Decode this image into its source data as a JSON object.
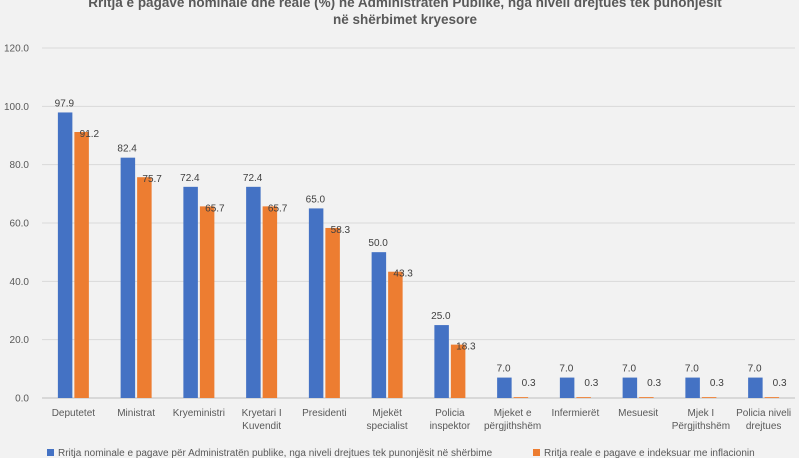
{
  "chart_data": {
    "type": "bar",
    "title": "Rritja e pagave nominale dhe reale (%) në Administratën Publike, nga niveli drejtues tek punonjësit në shërbimet kryesore",
    "title_lines": [
      "Rritja e pagave nominale dhe reale (%) në Administratën Publike, nga niveli drejtues tek punonjësit",
      "në shërbimet kryesore"
    ],
    "categories": [
      "Deputetet",
      "Ministrat",
      "Kryeministri",
      "Kryetari I Kuvendit",
      "Presidenti",
      "Mjekët specialist",
      "Policia inspektor",
      "Mjeket e përgjithshëm",
      "Infermierët",
      "Mesuesit",
      "Mjek I Përgjithshëm",
      "Policia niveli drejtues"
    ],
    "category_lines": [
      [
        "Deputetet"
      ],
      [
        "Ministrat"
      ],
      [
        "Kryeministri"
      ],
      [
        "Kryetari I",
        "Kuvendit"
      ],
      [
        "Presidenti"
      ],
      [
        "Mjekët",
        "specialist"
      ],
      [
        "Policia",
        "inspektor"
      ],
      [
        "Mjeket e",
        "përgjithshëm"
      ],
      [
        "Infermierët"
      ],
      [
        "Mesuesit"
      ],
      [
        "Mjek I",
        "Përgjithshëm"
      ],
      [
        "Policia niveli",
        "drejtues"
      ]
    ],
    "series": [
      {
        "name": "Rritja nominale e pagave për Administratën publike, nga niveli drejtues tek punonjësit në shërbime",
        "color": "#4472c4",
        "values": [
          97.9,
          82.4,
          72.4,
          72.4,
          65.0,
          50.0,
          25.0,
          7.0,
          7.0,
          7.0,
          7.0,
          7.0
        ]
      },
      {
        "name": "Rritja reale e pagave e indeksuar me inflacionin",
        "color": "#ed7d31",
        "values": [
          91.2,
          75.7,
          65.7,
          65.7,
          58.3,
          43.3,
          18.3,
          0.3,
          0.3,
          0.3,
          0.3,
          0.3
        ]
      }
    ],
    "yticks": [
      "0.0",
      "20.0",
      "40.0",
      "60.0",
      "80.0",
      "100.0",
      "120.0"
    ],
    "ylim": [
      0,
      120
    ],
    "grid": true,
    "legend": "bottom"
  }
}
